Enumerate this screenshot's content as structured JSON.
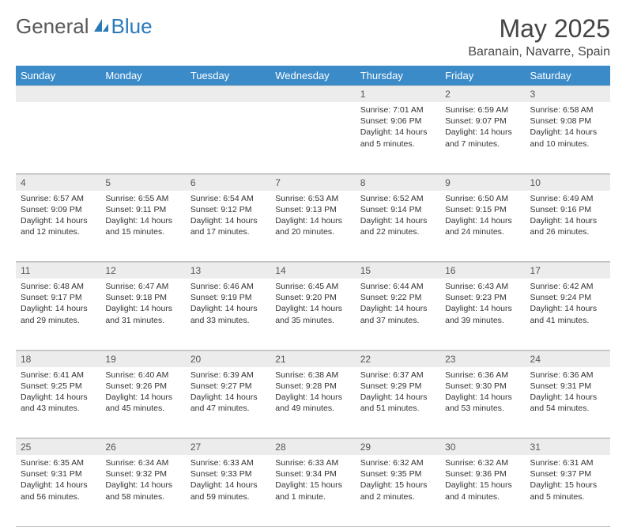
{
  "logo": {
    "text1": "General",
    "text2": "Blue"
  },
  "title": "May 2025",
  "location": "Baranain, Navarre, Spain",
  "colors": {
    "header_bg": "#3b8bc9",
    "header_text": "#ffffff",
    "daynum_bg": "#ececec",
    "border": "#bfbfbf",
    "logo_gray": "#5a5a5a",
    "logo_blue": "#2a7ab9"
  },
  "weekdays": [
    "Sunday",
    "Monday",
    "Tuesday",
    "Wednesday",
    "Thursday",
    "Friday",
    "Saturday"
  ],
  "leading_blanks": 4,
  "days": [
    {
      "n": 1,
      "sr": "7:01 AM",
      "ss": "9:06 PM",
      "dl": "14 hours and 5 minutes."
    },
    {
      "n": 2,
      "sr": "6:59 AM",
      "ss": "9:07 PM",
      "dl": "14 hours and 7 minutes."
    },
    {
      "n": 3,
      "sr": "6:58 AM",
      "ss": "9:08 PM",
      "dl": "14 hours and 10 minutes."
    },
    {
      "n": 4,
      "sr": "6:57 AM",
      "ss": "9:09 PM",
      "dl": "14 hours and 12 minutes."
    },
    {
      "n": 5,
      "sr": "6:55 AM",
      "ss": "9:11 PM",
      "dl": "14 hours and 15 minutes."
    },
    {
      "n": 6,
      "sr": "6:54 AM",
      "ss": "9:12 PM",
      "dl": "14 hours and 17 minutes."
    },
    {
      "n": 7,
      "sr": "6:53 AM",
      "ss": "9:13 PM",
      "dl": "14 hours and 20 minutes."
    },
    {
      "n": 8,
      "sr": "6:52 AM",
      "ss": "9:14 PM",
      "dl": "14 hours and 22 minutes."
    },
    {
      "n": 9,
      "sr": "6:50 AM",
      "ss": "9:15 PM",
      "dl": "14 hours and 24 minutes."
    },
    {
      "n": 10,
      "sr": "6:49 AM",
      "ss": "9:16 PM",
      "dl": "14 hours and 26 minutes."
    },
    {
      "n": 11,
      "sr": "6:48 AM",
      "ss": "9:17 PM",
      "dl": "14 hours and 29 minutes."
    },
    {
      "n": 12,
      "sr": "6:47 AM",
      "ss": "9:18 PM",
      "dl": "14 hours and 31 minutes."
    },
    {
      "n": 13,
      "sr": "6:46 AM",
      "ss": "9:19 PM",
      "dl": "14 hours and 33 minutes."
    },
    {
      "n": 14,
      "sr": "6:45 AM",
      "ss": "9:20 PM",
      "dl": "14 hours and 35 minutes."
    },
    {
      "n": 15,
      "sr": "6:44 AM",
      "ss": "9:22 PM",
      "dl": "14 hours and 37 minutes."
    },
    {
      "n": 16,
      "sr": "6:43 AM",
      "ss": "9:23 PM",
      "dl": "14 hours and 39 minutes."
    },
    {
      "n": 17,
      "sr": "6:42 AM",
      "ss": "9:24 PM",
      "dl": "14 hours and 41 minutes."
    },
    {
      "n": 18,
      "sr": "6:41 AM",
      "ss": "9:25 PM",
      "dl": "14 hours and 43 minutes."
    },
    {
      "n": 19,
      "sr": "6:40 AM",
      "ss": "9:26 PM",
      "dl": "14 hours and 45 minutes."
    },
    {
      "n": 20,
      "sr": "6:39 AM",
      "ss": "9:27 PM",
      "dl": "14 hours and 47 minutes."
    },
    {
      "n": 21,
      "sr": "6:38 AM",
      "ss": "9:28 PM",
      "dl": "14 hours and 49 minutes."
    },
    {
      "n": 22,
      "sr": "6:37 AM",
      "ss": "9:29 PM",
      "dl": "14 hours and 51 minutes."
    },
    {
      "n": 23,
      "sr": "6:36 AM",
      "ss": "9:30 PM",
      "dl": "14 hours and 53 minutes."
    },
    {
      "n": 24,
      "sr": "6:36 AM",
      "ss": "9:31 PM",
      "dl": "14 hours and 54 minutes."
    },
    {
      "n": 25,
      "sr": "6:35 AM",
      "ss": "9:31 PM",
      "dl": "14 hours and 56 minutes."
    },
    {
      "n": 26,
      "sr": "6:34 AM",
      "ss": "9:32 PM",
      "dl": "14 hours and 58 minutes."
    },
    {
      "n": 27,
      "sr": "6:33 AM",
      "ss": "9:33 PM",
      "dl": "14 hours and 59 minutes."
    },
    {
      "n": 28,
      "sr": "6:33 AM",
      "ss": "9:34 PM",
      "dl": "15 hours and 1 minute."
    },
    {
      "n": 29,
      "sr": "6:32 AM",
      "ss": "9:35 PM",
      "dl": "15 hours and 2 minutes."
    },
    {
      "n": 30,
      "sr": "6:32 AM",
      "ss": "9:36 PM",
      "dl": "15 hours and 4 minutes."
    },
    {
      "n": 31,
      "sr": "6:31 AM",
      "ss": "9:37 PM",
      "dl": "15 hours and 5 minutes."
    }
  ],
  "labels": {
    "sunrise": "Sunrise:",
    "sunset": "Sunset:",
    "daylight": "Daylight:"
  }
}
